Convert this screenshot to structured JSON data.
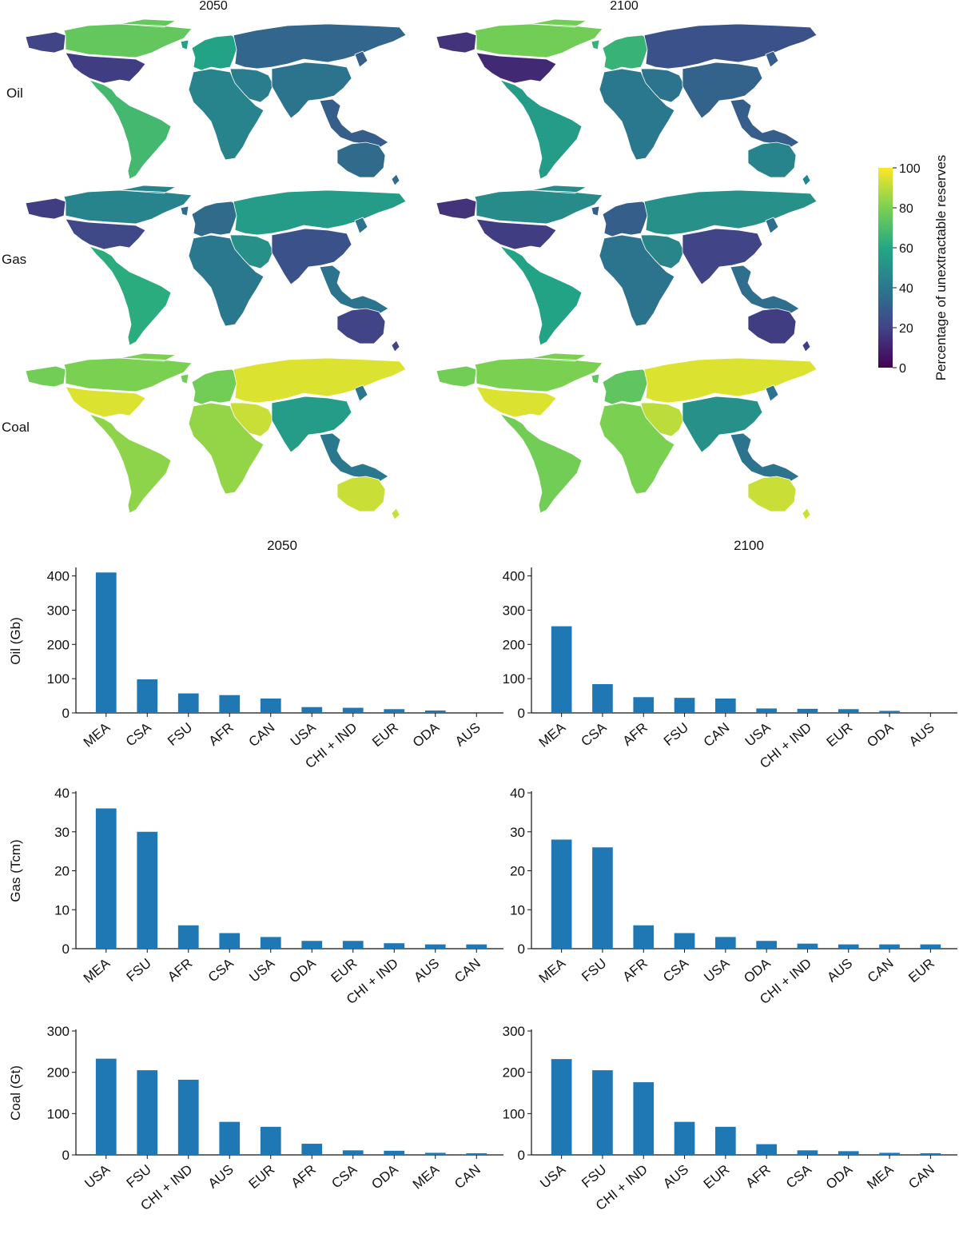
{
  "maps": {
    "columns": [
      "2050",
      "2100"
    ],
    "rows": [
      "Oil",
      "Gas",
      "Coal"
    ],
    "colorbar": {
      "label": "Percentage of unextractable reserves",
      "ticks": [
        "0",
        "20",
        "40",
        "60",
        "80",
        "100"
      ],
      "min": 0,
      "max": 100,
      "colormap": "viridis",
      "stops": [
        "#440154",
        "#414487",
        "#2a788e",
        "#22a884",
        "#7ad151",
        "#fde725"
      ]
    },
    "panels": [
      {
        "row": "Oil",
        "year": "2050",
        "values": {
          "USA": 18,
          "CAN": 75,
          "ALASKA": 20,
          "CSA": 68,
          "EUR": 58,
          "FSU": 33,
          "MEA": 42,
          "AFR": 45,
          "CHI + IND": 38,
          "ODA": 30,
          "AUS": 35
        }
      },
      {
        "row": "Oil",
        "year": "2100",
        "values": {
          "USA": 12,
          "CAN": 78,
          "ALASKA": 15,
          "CSA": 55,
          "EUR": 65,
          "FSU": 25,
          "MEA": 38,
          "AFR": 40,
          "CHI + IND": 32,
          "ODA": 30,
          "AUS": 45
        }
      },
      {
        "row": "Gas",
        "year": "2050",
        "values": {
          "USA": 22,
          "CAN": 45,
          "ALASKA": 18,
          "CSA": 62,
          "EUR": 35,
          "FSU": 55,
          "MEA": 50,
          "AFR": 40,
          "CHI + IND": 25,
          "ODA": 38,
          "AUS": 20
        }
      },
      {
        "row": "Gas",
        "year": "2100",
        "values": {
          "USA": 18,
          "CAN": 48,
          "ALASKA": 15,
          "CSA": 58,
          "EUR": 30,
          "FSU": 50,
          "MEA": 46,
          "AFR": 38,
          "CHI + IND": 20,
          "ODA": 36,
          "AUS": 18
        }
      },
      {
        "row": "Coal",
        "year": "2050",
        "values": {
          "USA": 95,
          "CAN": 80,
          "ALASKA": 78,
          "CSA": 83,
          "EUR": 78,
          "FSU": 95,
          "MEA": 92,
          "AFR": 84,
          "CHI + IND": 55,
          "ODA": 40,
          "AUS": 92
        }
      },
      {
        "row": "Coal",
        "year": "2100",
        "values": {
          "USA": 95,
          "CAN": 80,
          "ALASKA": 78,
          "CSA": 78,
          "EUR": 74,
          "FSU": 95,
          "MEA": 90,
          "AFR": 80,
          "CHI + IND": 50,
          "ODA": 38,
          "AUS": 92
        }
      }
    ]
  },
  "bar_columns": [
    "2050",
    "2100"
  ],
  "chart_data": [
    {
      "type": "bar",
      "title": "2050",
      "ylabel": "Oil (Gb)",
      "ylim": [
        0,
        420
      ],
      "yticks": [
        0,
        100,
        200,
        300,
        400
      ],
      "categories": [
        "MEA",
        "CSA",
        "FSU",
        "AFR",
        "CAN",
        "USA",
        "CHI + IND",
        "EUR",
        "ODA",
        "AUS"
      ],
      "values": [
        410,
        98,
        57,
        52,
        42,
        17,
        15,
        11,
        7,
        0
      ],
      "color": "#1f77b4"
    },
    {
      "type": "bar",
      "title": "2100",
      "ylabel": "",
      "ylim": [
        0,
        420
      ],
      "yticks": [
        0,
        100,
        200,
        300,
        400
      ],
      "categories": [
        "MEA",
        "CSA",
        "AFR",
        "FSU",
        "CAN",
        "USA",
        "CHI + IND",
        "EUR",
        "ODA",
        "AUS"
      ],
      "values": [
        253,
        84,
        46,
        44,
        42,
        13,
        12,
        11,
        6,
        0
      ],
      "color": "#1f77b4"
    },
    {
      "type": "bar",
      "title": "",
      "ylabel": "Gas (Tcm)",
      "ylim": [
        0,
        40
      ],
      "yticks": [
        0,
        10,
        20,
        30,
        40
      ],
      "categories": [
        "MEA",
        "FSU",
        "AFR",
        "CSA",
        "USA",
        "ODA",
        "EUR",
        "CHI + IND",
        "AUS",
        "CAN"
      ],
      "values": [
        36,
        30,
        6,
        4,
        3,
        2,
        2,
        1.4,
        1.1,
        1.1
      ],
      "color": "#1f77b4"
    },
    {
      "type": "bar",
      "title": "",
      "ylabel": "",
      "ylim": [
        0,
        40
      ],
      "yticks": [
        0,
        10,
        20,
        30,
        40
      ],
      "categories": [
        "MEA",
        "FSU",
        "AFR",
        "CSA",
        "USA",
        "ODA",
        "CHI + IND",
        "AUS",
        "CAN",
        "EUR"
      ],
      "values": [
        28,
        26,
        6,
        4,
        3,
        2,
        1.3,
        1.1,
        1.1,
        1.1
      ],
      "color": "#1f77b4"
    },
    {
      "type": "bar",
      "title": "",
      "ylabel": "Coal (Gt)",
      "ylim": [
        0,
        300
      ],
      "yticks": [
        0,
        100,
        200,
        300
      ],
      "categories": [
        "USA",
        "FSU",
        "CHI + IND",
        "AUS",
        "EUR",
        "AFR",
        "CSA",
        "ODA",
        "MEA",
        "CAN"
      ],
      "values": [
        233,
        205,
        182,
        80,
        68,
        27,
        11,
        10,
        5,
        4
      ],
      "color": "#1f77b4"
    },
    {
      "type": "bar",
      "title": "",
      "ylabel": "",
      "ylim": [
        0,
        300
      ],
      "yticks": [
        0,
        100,
        200,
        300
      ],
      "categories": [
        "USA",
        "FSU",
        "CHI + IND",
        "AUS",
        "EUR",
        "AFR",
        "CSA",
        "ODA",
        "MEA",
        "CAN"
      ],
      "values": [
        232,
        205,
        176,
        80,
        68,
        26,
        11,
        9,
        5,
        4
      ],
      "color": "#1f77b4"
    }
  ]
}
